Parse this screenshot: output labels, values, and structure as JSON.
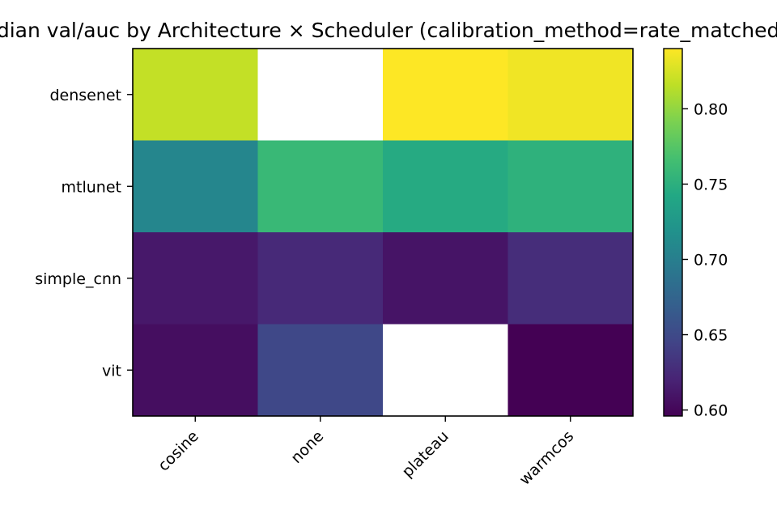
{
  "chart_data": {
    "type": "heatmap",
    "title": "Median val/auc by Architecture × Scheduler  (calibration_method=rate_matched)",
    "xlabel": "",
    "ylabel": "",
    "x_categories": [
      "cosine",
      "none",
      "plateau",
      "warmcos"
    ],
    "y_categories": [
      "densenet",
      "mtlunet",
      "simple_cnn",
      "vit"
    ],
    "values": [
      [
        0.818,
        null,
        0.84,
        0.835
      ],
      [
        0.707,
        0.759,
        0.745,
        0.752
      ],
      [
        0.612,
        0.624,
        0.609,
        0.627
      ],
      [
        0.605,
        0.648,
        null,
        0.596
      ]
    ],
    "missing_color": "#ffffff",
    "colormap": "viridis",
    "vmin": 0.596,
    "vmax": 0.84,
    "colorbar": {
      "ticks": [
        0.6,
        0.65,
        0.7,
        0.75,
        0.8
      ],
      "tick_labels": [
        "0.60",
        "0.65",
        "0.70",
        "0.75",
        "0.80"
      ]
    },
    "grid": false
  }
}
